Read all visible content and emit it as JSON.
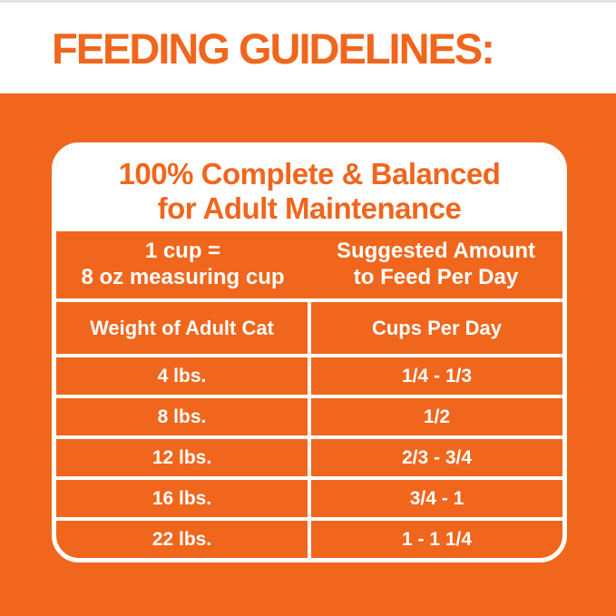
{
  "colors": {
    "orange": "#f0661c",
    "top_strip_gray": "#e3e3e3",
    "panel_border": "#ffffff",
    "text_on_orange": "#ffffff"
  },
  "header": {
    "title": "FEEDING GUIDELINES:"
  },
  "panel": {
    "title_line1": "100% Complete & Balanced",
    "title_line2": "for Adult Maintenance",
    "info": {
      "left_line1": "1 cup =",
      "left_line2": "8 oz measuring cup",
      "right_line1": "Suggested Amount",
      "right_line2": "to Feed Per Day"
    },
    "columns": {
      "left": "Weight of Adult Cat",
      "right": "Cups Per Day"
    },
    "rows": [
      {
        "weight": "4 lbs.",
        "cups": "1/4 - 1/3"
      },
      {
        "weight": "8 lbs.",
        "cups": "1/2"
      },
      {
        "weight": "12 lbs.",
        "cups": "2/3 - 3/4"
      },
      {
        "weight": "16 lbs.",
        "cups": "3/4 - 1"
      },
      {
        "weight": "22 lbs.",
        "cups": "1 - 1 1/4"
      }
    ]
  }
}
